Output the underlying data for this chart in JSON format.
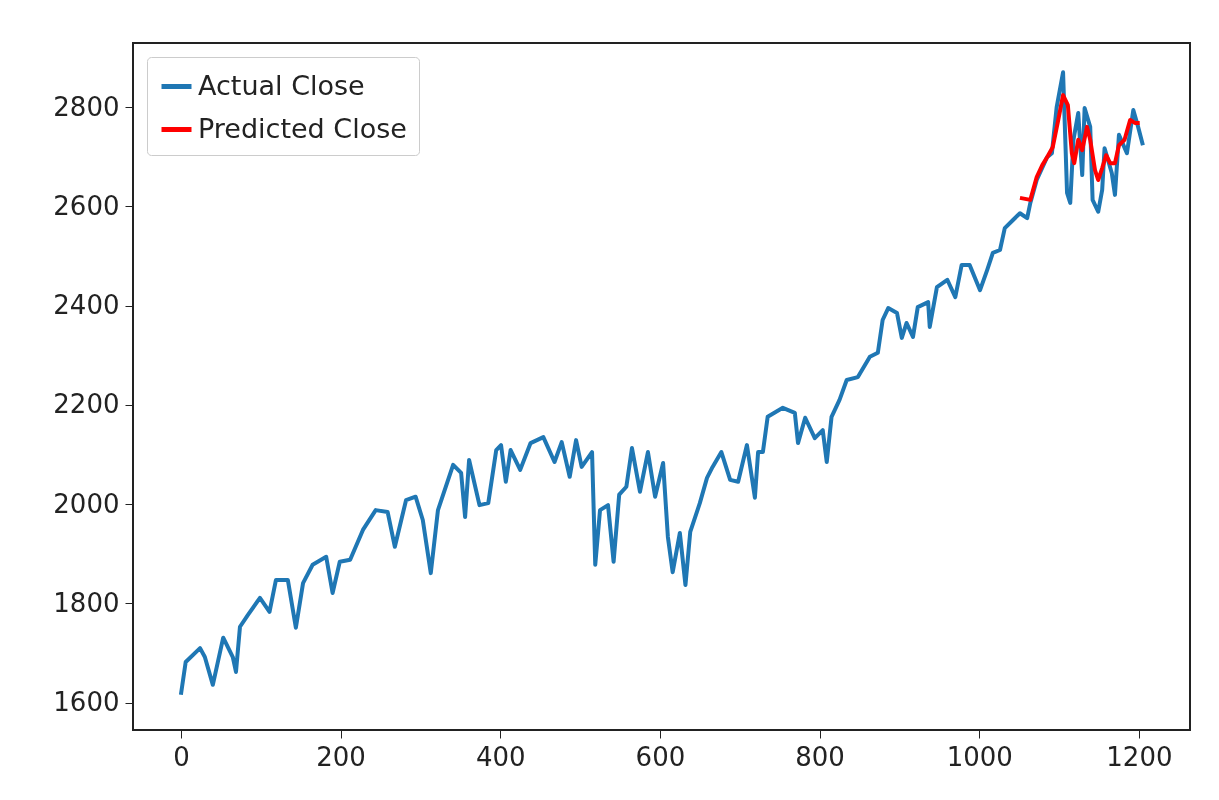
{
  "chart_data": {
    "type": "line",
    "xlim": [
      -60,
      1264
    ],
    "ylim": [
      1545,
      2929
    ],
    "xticks": [
      0,
      200,
      400,
      600,
      800,
      1000,
      1200
    ],
    "yticks": [
      1600,
      1800,
      2000,
      2200,
      2400,
      2600,
      2800
    ],
    "grid": false,
    "legend": "top left",
    "series": [
      {
        "name": "Actual Close",
        "color": "#1f77b4",
        "x": [
          0,
          6,
          24,
          30,
          40,
          53,
          65,
          69,
          74,
          84,
          99,
          111,
          119,
          134,
          144,
          153,
          165,
          182,
          190,
          199,
          212,
          228,
          244,
          259,
          268,
          282,
          294,
          303,
          313,
          322,
          341,
          351,
          356,
          361,
          374,
          385,
          395,
          401,
          407,
          413,
          425,
          438,
          454,
          468,
          477,
          487,
          495,
          502,
          515,
          519,
          525,
          535,
          542,
          549,
          558,
          565,
          575,
          585,
          594,
          604,
          610,
          616,
          625,
          632,
          638,
          650,
          659,
          666,
          677,
          688,
          698,
          709,
          719,
          723,
          729,
          735,
          754,
          769,
          773,
          782,
          794,
          804,
          809,
          815,
          825,
          834,
          848,
          863,
          873,
          879,
          886,
          897,
          903,
          909,
          917,
          923,
          936,
          938,
          947,
          960,
          970,
          978,
          988,
          1001,
          1010,
          1017,
          1026,
          1032,
          1042,
          1051,
          1060,
          1064,
          1072,
          1085,
          1091,
          1097,
          1105,
          1110,
          1114,
          1118,
          1124,
          1129,
          1132,
          1139,
          1142,
          1149,
          1154,
          1157,
          1166,
          1170,
          1175,
          1185,
          1193,
          1199,
          1205
        ],
        "values": [
          1616,
          1682,
          1710,
          1692,
          1636,
          1731,
          1692,
          1662,
          1753,
          1777,
          1811,
          1783,
          1847,
          1847,
          1751,
          1841,
          1878,
          1894,
          1821,
          1884,
          1888,
          1948,
          1988,
          1984,
          1914,
          2008,
          2015,
          1968,
          1861,
          1988,
          2079,
          2063,
          1974,
          2089,
          1998,
          2002,
          2109,
          2119,
          2045,
          2109,
          2069,
          2123,
          2135,
          2085,
          2125,
          2055,
          2129,
          2075,
          2105,
          1878,
          1988,
          1998,
          1884,
          2019,
          2035,
          2113,
          2025,
          2105,
          2015,
          2083,
          1934,
          1863,
          1942,
          1837,
          1944,
          2002,
          2053,
          2075,
          2105,
          2049,
          2045,
          2119,
          2013,
          2105,
          2105,
          2176,
          2194,
          2184,
          2123,
          2174,
          2133,
          2149,
          2085,
          2176,
          2210,
          2250,
          2256,
          2297,
          2305,
          2371,
          2395,
          2385,
          2335,
          2365,
          2337,
          2397,
          2407,
          2357,
          2437,
          2452,
          2417,
          2482,
          2482,
          2431,
          2472,
          2506,
          2512,
          2556,
          2572,
          2586,
          2576,
          2607,
          2653,
          2699,
          2707,
          2800,
          2870,
          2627,
          2607,
          2734,
          2788,
          2663,
          2798,
          2760,
          2613,
          2589,
          2633,
          2717,
          2667,
          2623,
          2744,
          2707,
          2794,
          2760,
          2723
        ]
      },
      {
        "name": "Predicted Close",
        "color": "#ff0000",
        "x": [
          1051,
          1064,
          1072,
          1079,
          1085,
          1092,
          1099,
          1105,
          1111,
          1116,
          1119,
          1124,
          1129,
          1135,
          1139,
          1145,
          1149,
          1154,
          1159,
          1164,
          1170,
          1175,
          1182,
          1189,
          1195,
          1201
        ],
        "values": [
          2617,
          2613,
          2659,
          2683,
          2699,
          2719,
          2774,
          2824,
          2804,
          2707,
          2687,
          2734,
          2713,
          2760,
          2734,
          2673,
          2653,
          2677,
          2703,
          2687,
          2687,
          2723,
          2734,
          2774,
          2768,
          2768
        ]
      }
    ]
  }
}
